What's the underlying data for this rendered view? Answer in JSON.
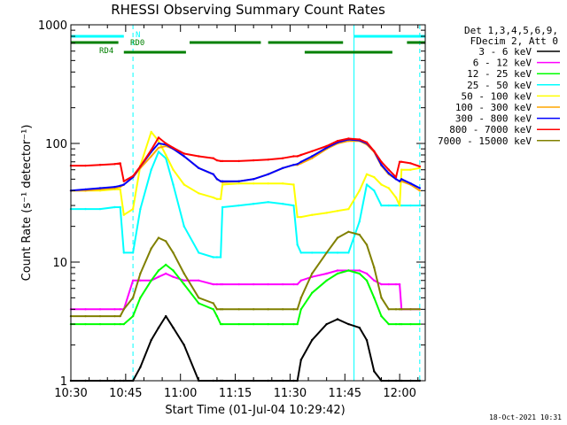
{
  "chart_data": {
    "type": "line",
    "title": "RHESSI Observing Summary Count Rates",
    "xlabel": "Start Time (01-Jul-04 10:29:42)",
    "ylabel": "Count Rate (s⁻¹ detector⁻¹)",
    "y_scale": "log",
    "ylim": [
      1,
      1000
    ],
    "xlim_minutes": [
      0,
      97
    ],
    "x_tick_labels": [
      "10:30",
      "10:45",
      "11:00",
      "11:15",
      "11:30",
      "11:45",
      "12:00"
    ],
    "x_tick_minutes": [
      0,
      15,
      30,
      45,
      60,
      75,
      90
    ],
    "y_tick_labels": [
      "1",
      "10",
      "100",
      "1000"
    ],
    "y_tick_values": [
      1,
      10,
      100,
      1000
    ],
    "legend_header": [
      "Det 1,3,4,5,6,9,",
      "FDecim 2, Att 0"
    ],
    "legend_position": "right",
    "footer": "18-Oct-2021 10:31",
    "flags": [
      {
        "label": "N",
        "color": "#00ffff",
        "segments": [
          [
            0,
            14.5
          ],
          [
            77.5,
            97
          ]
        ]
      },
      {
        "label": "RD0",
        "color": "#008000",
        "segments": [
          [
            0,
            13
          ],
          [
            32.5,
            52
          ],
          [
            54,
            74.5
          ],
          [
            92,
            97
          ]
        ]
      },
      {
        "label": "RD4",
        "color": "#008000",
        "segments": [
          [
            14.5,
            31.5
          ],
          [
            64,
            88
          ]
        ]
      }
    ],
    "vertical_lines": [
      {
        "minute": 0,
        "style": "solid",
        "color": "#00ffff"
      },
      {
        "minute": 17,
        "style": "dashed",
        "color": "#00ffff"
      },
      {
        "minute": 77.5,
        "style": "solid",
        "color": "#00ffff"
      },
      {
        "minute": 95.5,
        "style": "dashed",
        "color": "#00ffff"
      }
    ],
    "x": [
      0,
      4,
      8,
      12,
      13.5,
      14.5,
      17,
      19,
      22,
      24,
      26,
      28,
      31,
      35,
      39,
      40,
      41,
      41.5,
      46,
      50,
      54,
      58,
      61,
      62,
      63,
      66,
      70,
      73,
      76,
      79,
      81,
      83,
      85,
      87,
      89,
      90,
      90.5,
      93,
      95.5
    ],
    "series": [
      {
        "name": "3 - 6 keV",
        "color": "#000000",
        "values": [
          1,
          1,
          1,
          1,
          1,
          1,
          1,
          1.3,
          2.2,
          2.8,
          3.5,
          2.8,
          2,
          1,
          1,
          1,
          1,
          1,
          1,
          1,
          1,
          1,
          1,
          1,
          1.5,
          2.2,
          3,
          3.3,
          3,
          2.8,
          2.2,
          1.2,
          1,
          1,
          1,
          1,
          1,
          1,
          1
        ]
      },
      {
        "name": "6 - 12 keV",
        "color": "#ff00ff",
        "values": [
          4,
          4,
          4,
          4,
          4,
          4,
          7,
          7,
          7,
          7.5,
          8,
          7.5,
          7,
          7,
          6.5,
          6.5,
          6.5,
          6.5,
          6.5,
          6.5,
          6.5,
          6.5,
          6.5,
          6.5,
          7,
          7.5,
          8,
          8.5,
          8.5,
          8.5,
          8,
          7,
          6.5,
          6.5,
          6.5,
          6.5,
          4,
          4,
          4
        ]
      },
      {
        "name": "12 - 25 keV",
        "color": "#00ff00",
        "values": [
          3,
          3,
          3,
          3,
          3,
          3,
          3.5,
          5,
          7,
          8.5,
          9.5,
          8.5,
          6.5,
          4.5,
          4,
          3.5,
          3,
          3,
          3,
          3,
          3,
          3,
          3,
          3,
          4,
          5.5,
          7,
          8,
          8.5,
          8,
          7,
          5,
          3.5,
          3,
          3,
          3,
          3,
          3,
          3
        ]
      },
      {
        "name": "25 - 50 keV",
        "color": "#00ffff",
        "values": [
          28,
          28,
          28,
          29,
          29,
          12,
          12,
          28,
          60,
          85,
          75,
          45,
          20,
          12,
          11,
          11,
          11,
          29,
          30,
          31,
          32,
          31,
          30,
          14,
          12,
          12,
          12,
          12,
          12,
          22,
          45,
          40,
          30,
          30,
          30,
          30,
          30,
          30,
          30
        ]
      },
      {
        "name": "50 - 100 keV",
        "color": "#ffff00",
        "values": [
          40,
          40,
          40,
          41,
          41,
          25,
          28,
          65,
          125,
          105,
          80,
          60,
          45,
          38,
          35,
          34,
          34,
          45,
          46,
          46,
          46,
          46,
          45,
          24,
          24,
          25,
          26,
          27,
          28,
          40,
          55,
          52,
          45,
          42,
          35,
          30,
          60,
          60,
          62
        ]
      },
      {
        "name": "100 - 300 keV",
        "color": "#ffa500",
        "values": [
          40,
          40,
          41,
          42,
          43,
          45,
          52,
          62,
          78,
          92,
          95,
          90,
          78,
          62,
          55,
          50,
          48,
          47,
          48,
          50,
          55,
          62,
          66,
          66,
          68,
          75,
          90,
          100,
          105,
          105,
          98,
          85,
          65,
          55,
          50,
          48,
          48,
          45,
          40
        ]
      },
      {
        "name": "300 - 800 keV",
        "color": "#0000ff",
        "values": [
          40,
          41,
          42,
          43,
          44,
          45,
          52,
          64,
          85,
          100,
          98,
          90,
          78,
          62,
          55,
          50,
          48,
          48,
          48,
          50,
          55,
          62,
          66,
          67,
          70,
          78,
          92,
          102,
          108,
          106,
          100,
          86,
          66,
          56,
          50,
          48,
          50,
          46,
          42
        ]
      },
      {
        "name": "800 - 7000 keV",
        "color": "#ff0000",
        "values": [
          65,
          65,
          66,
          67,
          68,
          48,
          53,
          64,
          88,
          112,
          100,
          92,
          82,
          78,
          75,
          72,
          71,
          71,
          71,
          72,
          73,
          75,
          78,
          78,
          80,
          86,
          95,
          105,
          110,
          108,
          102,
          86,
          70,
          60,
          52,
          70,
          70,
          68,
          64
        ]
      },
      {
        "name": "7000 - 15000 keV",
        "color": "#808000",
        "values": [
          3.5,
          3.5,
          3.5,
          3.5,
          3.5,
          4,
          5,
          8,
          13,
          16,
          15,
          12,
          8,
          5,
          4.5,
          4,
          4,
          4,
          4,
          4,
          4,
          4,
          4,
          4,
          5,
          8,
          12,
          16,
          18,
          17,
          14,
          9,
          5,
          4,
          4,
          4,
          4,
          4,
          4
        ]
      }
    ]
  }
}
